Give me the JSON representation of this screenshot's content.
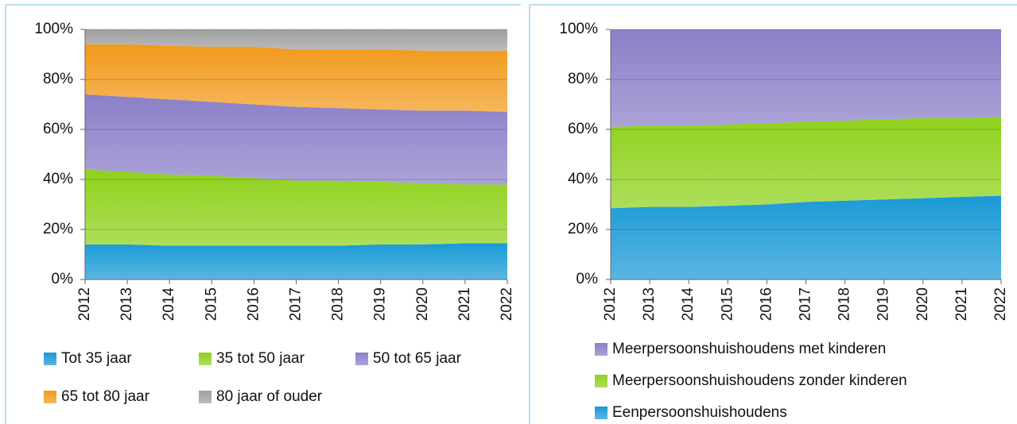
{
  "chart_data": [
    {
      "type": "stacked_area",
      "categories": [
        "2012",
        "2013",
        "2014",
        "2015",
        "2016",
        "2017",
        "2018",
        "2019",
        "2020",
        "2021",
        "2022"
      ],
      "ylim": [
        0,
        100
      ],
      "yticks": [
        {
          "value": 0,
          "label": "0%"
        },
        {
          "value": 20,
          "label": "20%"
        },
        {
          "value": 40,
          "label": "40%"
        },
        {
          "value": 60,
          "label": "60%"
        },
        {
          "value": 80,
          "label": "80%"
        },
        {
          "value": 100,
          "label": "100%"
        }
      ],
      "grid": true,
      "legend": "bottom",
      "series": [
        {
          "name": "Tot 35 jaar",
          "color": "#1a9ad6",
          "values": [
            14,
            14,
            13.5,
            13.5,
            13.5,
            13.5,
            13.5,
            14,
            14,
            14.5,
            14.5
          ]
        },
        {
          "name": "35 tot 50 jaar",
          "color": "#8fd11c",
          "values": [
            30,
            29,
            28.5,
            28,
            27,
            26,
            26,
            25,
            24.5,
            23.5,
            23.5
          ]
        },
        {
          "name": "50 tot 65 jaar",
          "color": "#8b7fc8",
          "values": [
            30,
            30,
            30,
            29.5,
            29.5,
            29.5,
            29,
            29,
            29,
            29.5,
            29
          ]
        },
        {
          "name": "65 tot 80 jaar",
          "color": "#f29a1c",
          "values": [
            20,
            21,
            21.5,
            22,
            23,
            23,
            23.5,
            24,
            24,
            24,
            24.5
          ]
        },
        {
          "name": "80 jaar of ouder",
          "color": "#a0a0a0",
          "values": [
            6,
            6,
            6.5,
            7,
            7,
            8,
            8,
            8,
            8.5,
            8.5,
            8.5
          ]
        }
      ]
    },
    {
      "type": "stacked_area",
      "categories": [
        "2012",
        "2013",
        "2014",
        "2015",
        "2016",
        "2017",
        "2018",
        "2019",
        "2020",
        "2021",
        "2022"
      ],
      "ylim": [
        0,
        100
      ],
      "yticks": [
        {
          "value": 0,
          "label": "0%"
        },
        {
          "value": 20,
          "label": "20%"
        },
        {
          "value": 40,
          "label": "40%"
        },
        {
          "value": 60,
          "label": "60%"
        },
        {
          "value": 80,
          "label": "80%"
        },
        {
          "value": 100,
          "label": "100%"
        }
      ],
      "grid": true,
      "legend": "bottom",
      "series": [
        {
          "name": "Eenpersoonshuishoudens",
          "color": "#1a9ad6",
          "values": [
            28.5,
            29,
            29,
            29.5,
            30,
            31,
            31.5,
            32,
            32.5,
            33,
            33.5
          ]
        },
        {
          "name": "Meerpersoonshuishoudens zonder kinderen",
          "color": "#8fd11c",
          "values": [
            32.5,
            32.5,
            32.5,
            32.5,
            32.5,
            32,
            32,
            32,
            32,
            31.5,
            31.5
          ]
        },
        {
          "name": "Meerpersoonshuishoudens met kinderen",
          "color": "#8b7fc8",
          "values": [
            39,
            38.5,
            38.5,
            38,
            37.5,
            37,
            36.5,
            36,
            35.5,
            35.5,
            35
          ]
        }
      ]
    }
  ]
}
